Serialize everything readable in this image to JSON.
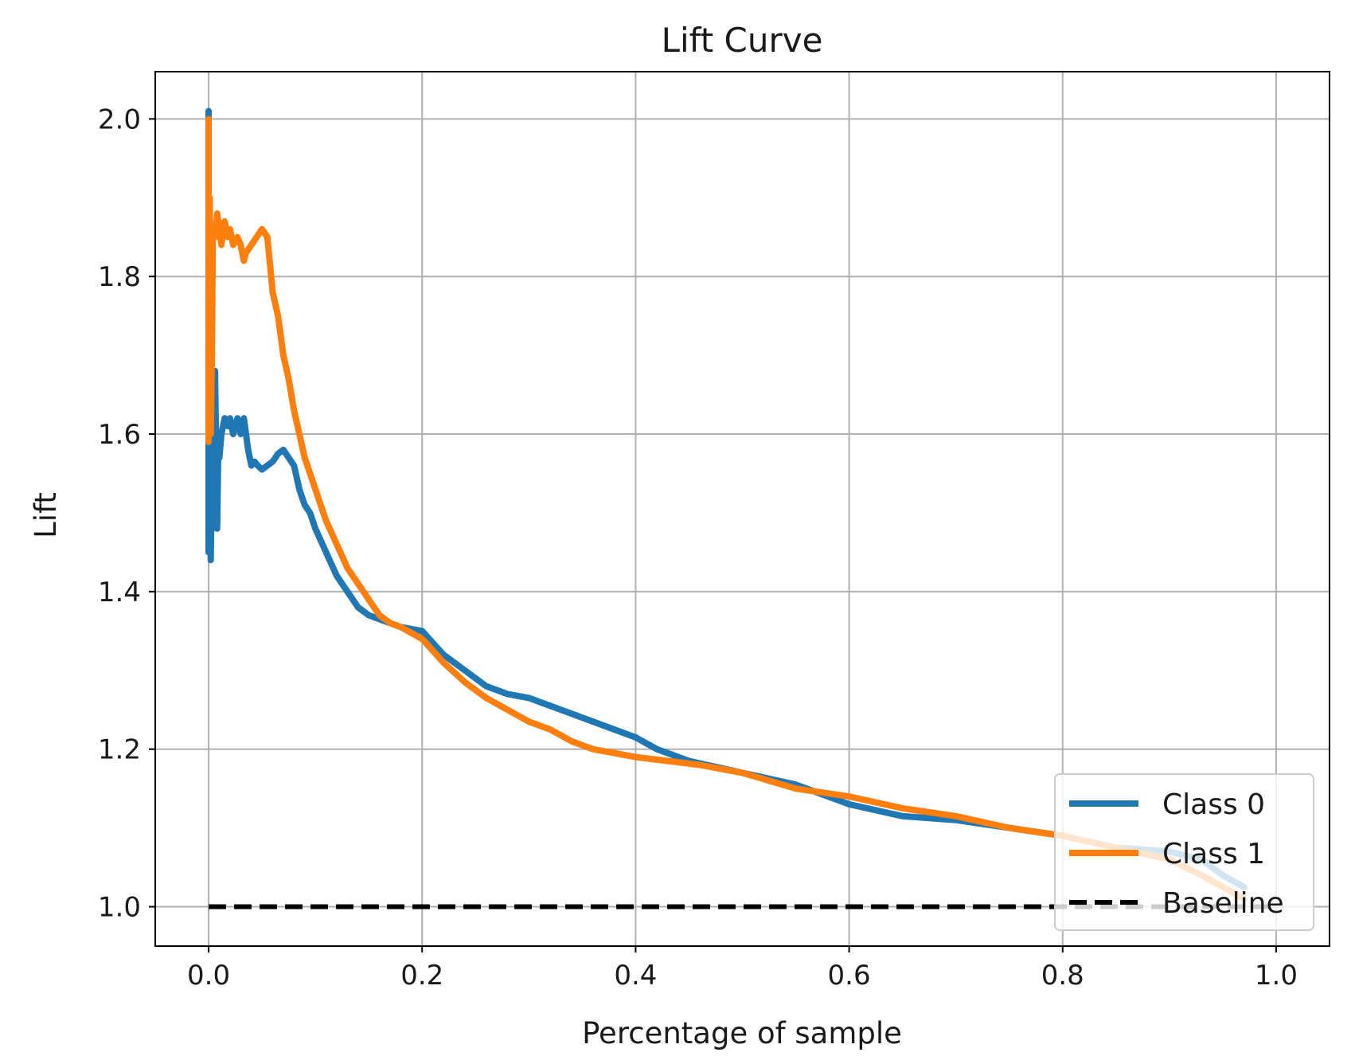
{
  "chart_data": {
    "type": "line",
    "title": "Lift Curve",
    "xlabel": "Percentage of sample",
    "ylabel": "Lift",
    "xlim": [
      -0.05,
      1.05
    ],
    "ylim": [
      0.95,
      2.06
    ],
    "xticks": [
      0.0,
      0.2,
      0.4,
      0.6,
      0.8,
      1.0
    ],
    "xtick_labels": [
      "0.0",
      "0.2",
      "0.4",
      "0.6",
      "0.8",
      "1.0"
    ],
    "yticks": [
      1.0,
      1.2,
      1.4,
      1.6,
      1.8,
      2.0
    ],
    "ytick_labels": [
      "1.0",
      "1.2",
      "1.4",
      "1.6",
      "1.8",
      "2.0"
    ],
    "grid": true,
    "legend_position": "lower-right",
    "series": [
      {
        "name": "Class 0",
        "color": "#1f77b4",
        "style": "solid",
        "x": [
          0.0,
          0.0,
          0.001,
          0.002,
          0.003,
          0.004,
          0.006,
          0.008,
          0.009,
          0.01,
          0.012,
          0.015,
          0.018,
          0.02,
          0.023,
          0.027,
          0.03,
          0.033,
          0.037,
          0.04,
          0.043,
          0.046,
          0.05,
          0.055,
          0.06,
          0.065,
          0.07,
          0.075,
          0.08,
          0.085,
          0.09,
          0.095,
          0.1,
          0.11,
          0.12,
          0.13,
          0.14,
          0.15,
          0.16,
          0.17,
          0.18,
          0.2,
          0.22,
          0.24,
          0.26,
          0.27,
          0.28,
          0.3,
          0.32,
          0.35,
          0.38,
          0.4,
          0.42,
          0.45,
          0.5,
          0.55,
          0.6,
          0.65,
          0.7,
          0.75,
          0.8,
          0.85,
          0.9,
          0.93,
          0.95,
          0.97
        ],
        "values": [
          2.01,
          1.45,
          1.6,
          1.44,
          1.55,
          1.48,
          1.68,
          1.48,
          1.58,
          1.57,
          1.6,
          1.62,
          1.61,
          1.62,
          1.6,
          1.62,
          1.6,
          1.62,
          1.58,
          1.56,
          1.565,
          1.56,
          1.555,
          1.56,
          1.565,
          1.575,
          1.58,
          1.57,
          1.56,
          1.53,
          1.51,
          1.5,
          1.48,
          1.45,
          1.42,
          1.4,
          1.38,
          1.37,
          1.365,
          1.36,
          1.355,
          1.35,
          1.32,
          1.3,
          1.28,
          1.275,
          1.27,
          1.265,
          1.255,
          1.24,
          1.225,
          1.215,
          1.2,
          1.185,
          1.17,
          1.155,
          1.13,
          1.115,
          1.11,
          1.1,
          1.09,
          1.075,
          1.07,
          1.06,
          1.04,
          1.025
        ]
      },
      {
        "name": "Class 1",
        "color": "#ff7f0e",
        "style": "solid",
        "x": [
          0.0,
          0.0,
          0.001,
          0.002,
          0.003,
          0.004,
          0.006,
          0.008,
          0.01,
          0.012,
          0.015,
          0.018,
          0.02,
          0.023,
          0.027,
          0.03,
          0.033,
          0.035,
          0.04,
          0.045,
          0.05,
          0.055,
          0.06,
          0.065,
          0.07,
          0.075,
          0.08,
          0.085,
          0.09,
          0.1,
          0.11,
          0.12,
          0.13,
          0.14,
          0.15,
          0.16,
          0.17,
          0.18,
          0.2,
          0.22,
          0.24,
          0.26,
          0.28,
          0.3,
          0.32,
          0.34,
          0.36,
          0.38,
          0.4,
          0.43,
          0.46,
          0.5,
          0.55,
          0.6,
          0.65,
          0.7,
          0.75,
          0.8,
          0.85,
          0.9,
          0.93,
          0.95,
          0.97
        ],
        "values": [
          2.0,
          1.59,
          1.9,
          1.6,
          1.7,
          1.86,
          1.85,
          1.88,
          1.86,
          1.84,
          1.87,
          1.85,
          1.86,
          1.84,
          1.85,
          1.84,
          1.82,
          1.83,
          1.84,
          1.85,
          1.86,
          1.85,
          1.78,
          1.75,
          1.7,
          1.67,
          1.63,
          1.6,
          1.57,
          1.53,
          1.49,
          1.46,
          1.43,
          1.41,
          1.39,
          1.37,
          1.36,
          1.355,
          1.34,
          1.31,
          1.285,
          1.265,
          1.25,
          1.235,
          1.225,
          1.21,
          1.2,
          1.195,
          1.19,
          1.185,
          1.18,
          1.17,
          1.15,
          1.14,
          1.125,
          1.115,
          1.1,
          1.09,
          1.075,
          1.06,
          1.04,
          1.025,
          1.01
        ]
      },
      {
        "name": "Baseline",
        "color": "#000000",
        "style": "dashed",
        "x": [
          0.0,
          1.0
        ],
        "values": [
          1.0,
          1.0
        ]
      }
    ]
  }
}
